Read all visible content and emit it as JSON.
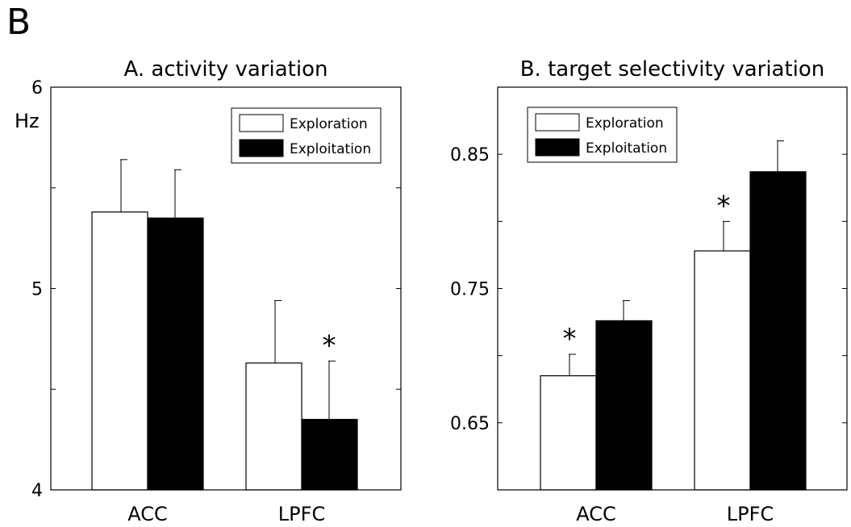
{
  "figure": {
    "panel_label": "B"
  },
  "chart_data": [
    {
      "type": "bar",
      "title": "A. activity variation",
      "ylabel": "Hz",
      "categories": [
        "ACC",
        "LPFC"
      ],
      "ylim": [
        4,
        6
      ],
      "yticks": [
        4,
        5,
        6
      ],
      "series": [
        {
          "name": "Exploration",
          "color": "#ffffff",
          "values": [
            5.38,
            4.63
          ],
          "errors": [
            0.26,
            0.31
          ]
        },
        {
          "name": "Exploitation",
          "color": "#000000",
          "values": [
            5.35,
            4.35
          ],
          "errors": [
            0.24,
            0.29
          ]
        }
      ],
      "annotations": [
        {
          "text": "*",
          "category": 1,
          "series": 1
        }
      ],
      "legend": "top-right",
      "grid": false
    },
    {
      "type": "bar",
      "title": "B. target selectivity variation",
      "ylabel": "",
      "categories": [
        "ACC",
        "LPFC"
      ],
      "ylim": [
        0.6,
        0.9
      ],
      "yticks": [
        0.65,
        0.75,
        0.85
      ],
      "ytick_labels": [
        "0.65",
        "0.75",
        "0.85"
      ],
      "series": [
        {
          "name": "Exploration",
          "color": "#ffffff",
          "values": [
            0.685,
            0.778
          ],
          "errors": [
            0.016,
            0.022
          ]
        },
        {
          "name": "Exploitation",
          "color": "#000000",
          "values": [
            0.726,
            0.837
          ],
          "errors": [
            0.015,
            0.023
          ]
        }
      ],
      "annotations": [
        {
          "text": "*",
          "category": 0,
          "series": 0
        },
        {
          "text": "*",
          "category": 1,
          "series": 0
        }
      ],
      "legend": "top-left",
      "grid": false
    }
  ]
}
